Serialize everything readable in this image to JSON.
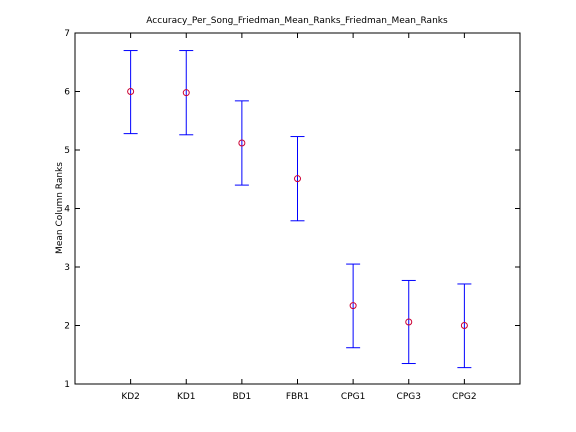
{
  "chart_data": {
    "type": "scatter",
    "title": "Accuracy_Per_Song_Friedman_Mean_Ranks_Friedman_Mean_Ranks",
    "xlabel": "",
    "ylabel": "Mean Column Ranks",
    "categories": [
      "KD2",
      "KD1",
      "BD1",
      "FBR1",
      "CPG1",
      "CPG3",
      "CPG2"
    ],
    "series": [
      {
        "values": [
          6.0,
          5.98,
          5.12,
          4.51,
          2.34,
          2.06,
          2.0
        ],
        "lower": [
          5.28,
          5.26,
          4.4,
          3.79,
          1.62,
          1.35,
          1.28
        ],
        "upper": [
          6.7,
          6.7,
          5.84,
          5.23,
          3.05,
          2.77,
          2.71
        ]
      }
    ],
    "ylim": [
      1,
      7
    ],
    "yticks": [
      1,
      2,
      3,
      4,
      5,
      6,
      7
    ],
    "grid": false,
    "colors": {
      "errorbar": "#0000ff",
      "marker": "#cc0033",
      "axis": "#000000"
    }
  }
}
